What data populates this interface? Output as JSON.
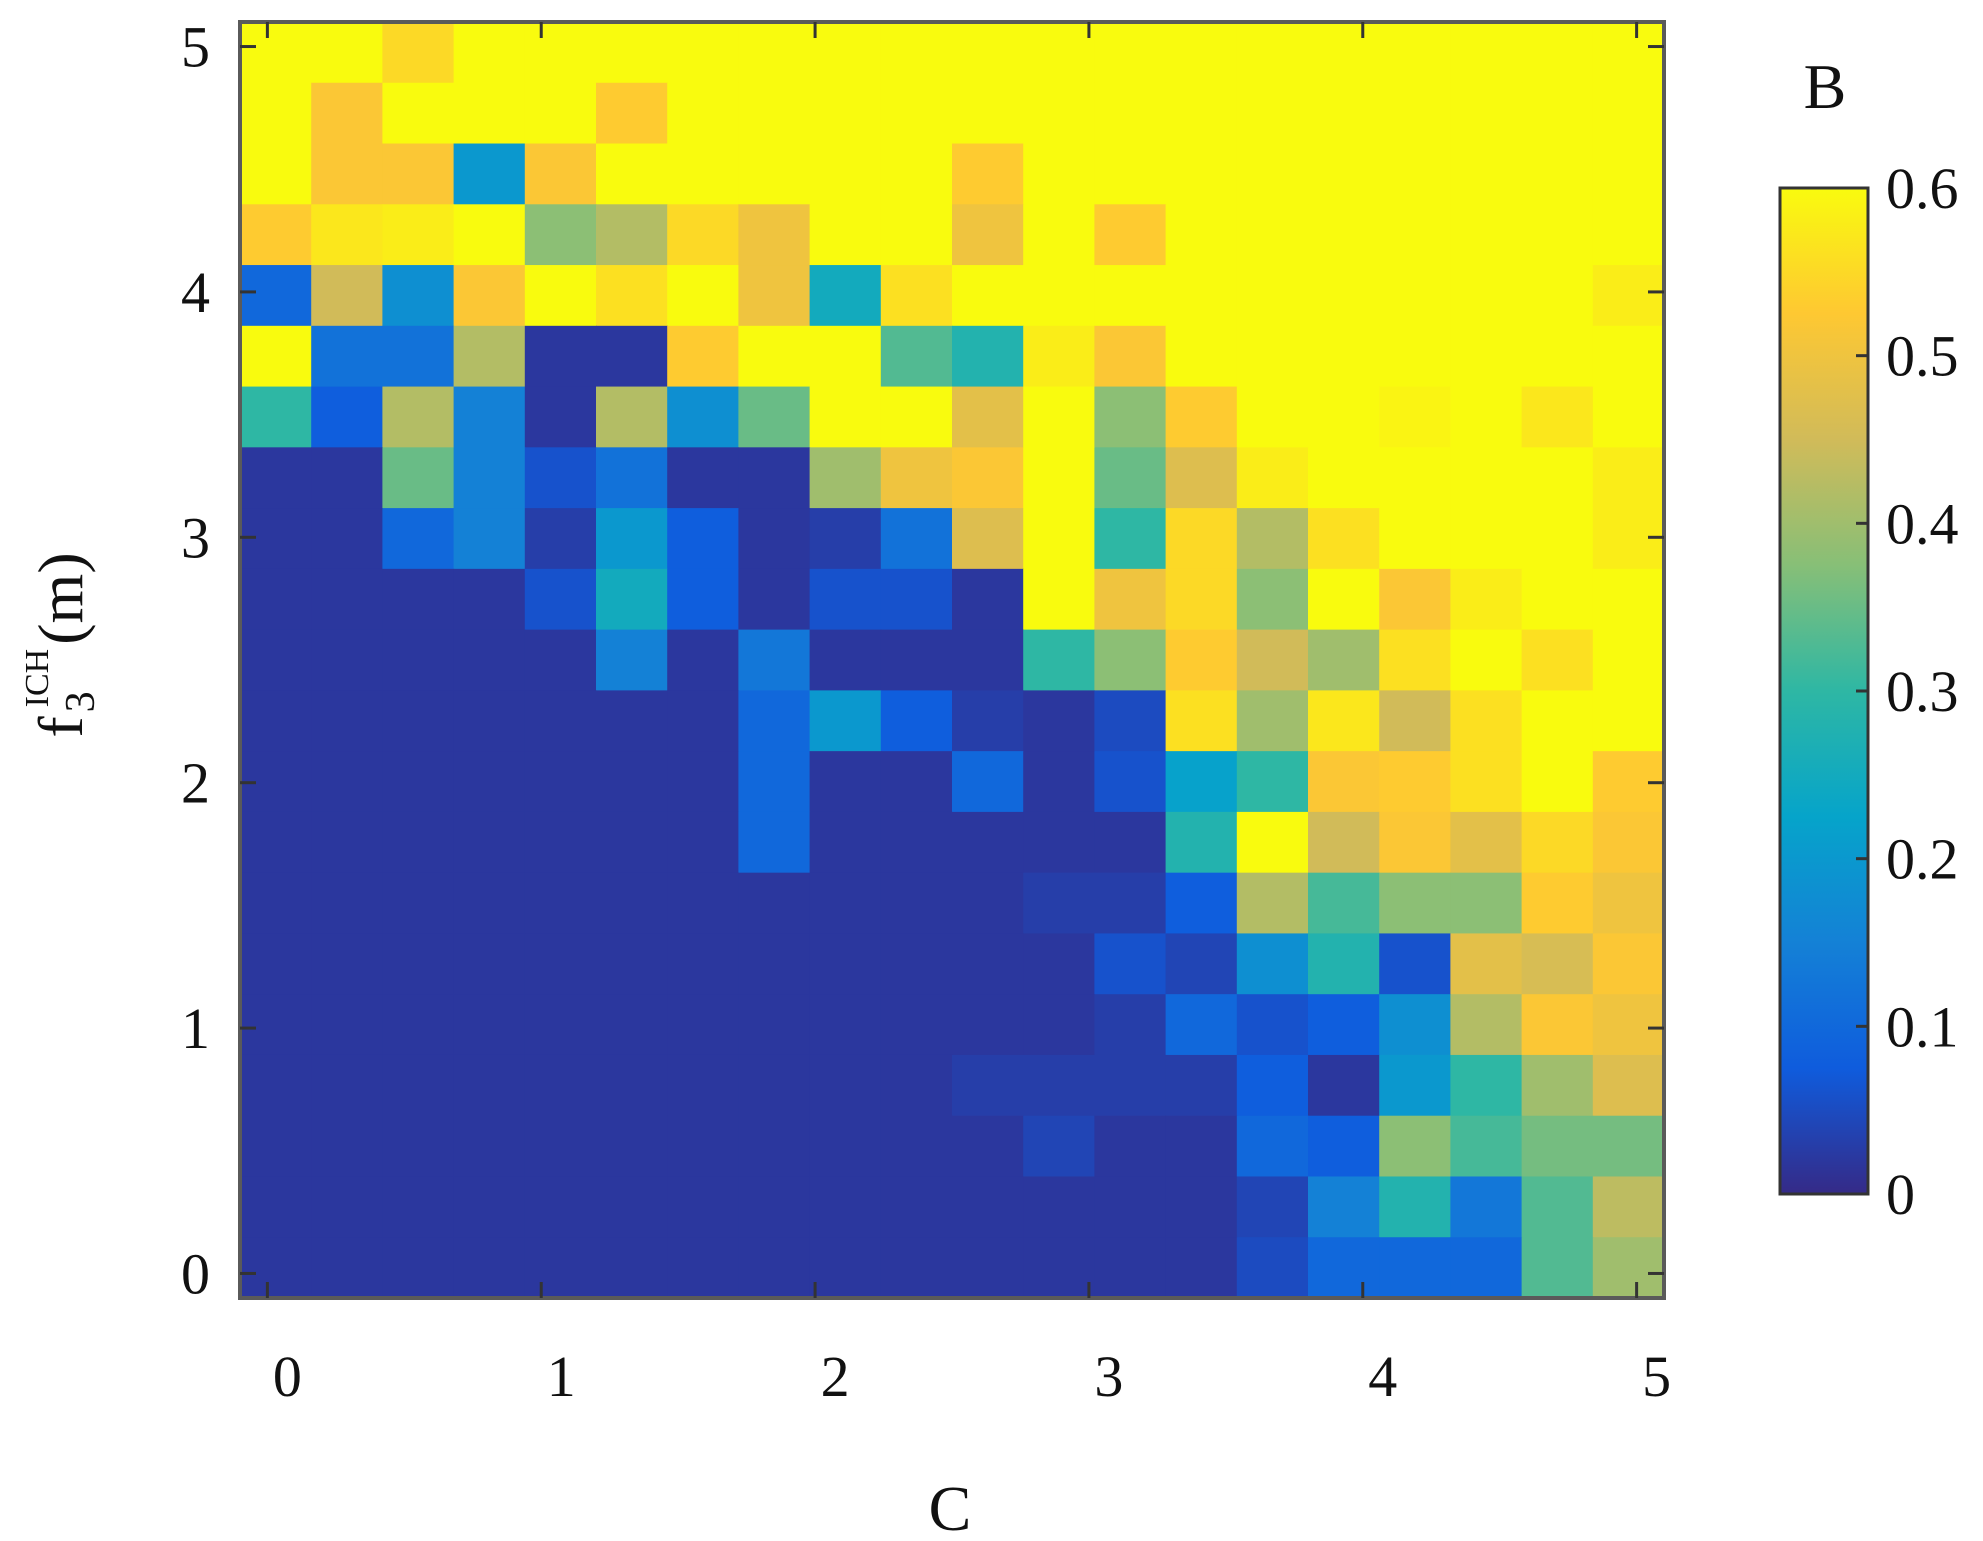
{
  "chart_data": {
    "type": "heatmap",
    "title": "",
    "xlabel": "C",
    "ylabel": {
      "base": "f",
      "sub": "3",
      "sup": "ICH",
      "unit": "(m)"
    },
    "colorbar_label": "B",
    "xlim": [
      -0.1,
      5.1
    ],
    "ylim": [
      -0.1,
      5.1
    ],
    "x_ticks": [
      0,
      1,
      2,
      3,
      4,
      5
    ],
    "y_ticks": [
      0,
      1,
      2,
      3,
      4,
      5
    ],
    "x_tick_labels": [
      "0",
      "1",
      "2",
      "3",
      "4",
      "5"
    ],
    "y_tick_labels": [
      "0",
      "1",
      "2",
      "3",
      "4",
      "5"
    ],
    "color_range": [
      0,
      0.6
    ],
    "colorbar_ticks": [
      0,
      0.1,
      0.2,
      0.3,
      0.4,
      0.5,
      0.6
    ],
    "colorbar_tick_labels": [
      "0",
      "0.1",
      "0.2",
      "0.3",
      "0.4",
      "0.5",
      "0.6"
    ],
    "colormap": "parula",
    "colormap_stops": [
      "#352A87",
      "#0F5CDD",
      "#1481D6",
      "#06A4CA",
      "#2EB7A4",
      "#87BF77",
      "#D1BB59",
      "#FEC832",
      "#F9FB0E"
    ],
    "grid": false,
    "values_note_rows": "rows listed from top (f=5) to bottom (f=0); 20 columns from C=0 to C=5",
    "values": [
      [
        0.6,
        0.6,
        0.55,
        0.6,
        0.6,
        0.6,
        0.6,
        0.6,
        0.6,
        0.6,
        0.6,
        0.6,
        0.6,
        0.6,
        0.6,
        0.6,
        0.6,
        0.6,
        0.6,
        0.6
      ],
      [
        0.6,
        0.52,
        0.6,
        0.6,
        0.6,
        0.53,
        0.6,
        0.6,
        0.6,
        0.6,
        0.6,
        0.6,
        0.6,
        0.6,
        0.6,
        0.6,
        0.6,
        0.6,
        0.6,
        0.6
      ],
      [
        0.6,
        0.52,
        0.52,
        0.2,
        0.52,
        0.6,
        0.6,
        0.6,
        0.6,
        0.6,
        0.53,
        0.6,
        0.6,
        0.6,
        0.6,
        0.6,
        0.6,
        0.6,
        0.6,
        0.6
      ],
      [
        0.53,
        0.57,
        0.58,
        0.6,
        0.38,
        0.42,
        0.55,
        0.5,
        0.6,
        0.6,
        0.5,
        0.6,
        0.53,
        0.6,
        0.6,
        0.6,
        0.6,
        0.6,
        0.6,
        0.6
      ],
      [
        0.1,
        0.45,
        0.18,
        0.52,
        0.6,
        0.56,
        0.6,
        0.5,
        0.25,
        0.56,
        0.6,
        0.6,
        0.6,
        0.6,
        0.6,
        0.6,
        0.6,
        0.6,
        0.6,
        0.58
      ],
      [
        0.6,
        0.12,
        0.12,
        0.42,
        0.02,
        0.02,
        0.53,
        0.6,
        0.6,
        0.33,
        0.28,
        0.58,
        0.52,
        0.6,
        0.6,
        0.6,
        0.6,
        0.6,
        0.6,
        0.6
      ],
      [
        0.3,
        0.08,
        0.42,
        0.15,
        0.02,
        0.42,
        0.18,
        0.35,
        0.6,
        0.6,
        0.48,
        0.6,
        0.38,
        0.53,
        0.6,
        0.6,
        0.59,
        0.6,
        0.57,
        0.6
      ],
      [
        0.02,
        0.02,
        0.35,
        0.15,
        0.06,
        0.12,
        0.02,
        0.02,
        0.4,
        0.5,
        0.52,
        0.6,
        0.35,
        0.47,
        0.58,
        0.6,
        0.6,
        0.6,
        0.6,
        0.58
      ],
      [
        0.02,
        0.02,
        0.1,
        0.15,
        0.03,
        0.2,
        0.08,
        0.02,
        0.03,
        0.12,
        0.47,
        0.6,
        0.3,
        0.55,
        0.42,
        0.56,
        0.6,
        0.6,
        0.6,
        0.58
      ],
      [
        0.02,
        0.02,
        0.02,
        0.02,
        0.06,
        0.25,
        0.08,
        0.02,
        0.06,
        0.06,
        0.02,
        0.6,
        0.5,
        0.55,
        0.38,
        0.6,
        0.52,
        0.58,
        0.6,
        0.6
      ],
      [
        0.02,
        0.02,
        0.02,
        0.02,
        0.02,
        0.15,
        0.02,
        0.13,
        0.02,
        0.02,
        0.02,
        0.3,
        0.38,
        0.53,
        0.45,
        0.4,
        0.56,
        0.6,
        0.56,
        0.6
      ],
      [
        0.02,
        0.02,
        0.02,
        0.02,
        0.02,
        0.02,
        0.02,
        0.1,
        0.2,
        0.08,
        0.03,
        0.02,
        0.05,
        0.56,
        0.4,
        0.57,
        0.45,
        0.56,
        0.6,
        0.6
      ],
      [
        0.02,
        0.02,
        0.02,
        0.02,
        0.02,
        0.02,
        0.02,
        0.1,
        0.02,
        0.02,
        0.1,
        0.02,
        0.06,
        0.22,
        0.3,
        0.52,
        0.53,
        0.56,
        0.6,
        0.53
      ],
      [
        0.02,
        0.02,
        0.02,
        0.02,
        0.02,
        0.02,
        0.02,
        0.1,
        0.02,
        0.02,
        0.02,
        0.02,
        0.02,
        0.28,
        0.6,
        0.45,
        0.52,
        0.48,
        0.55,
        0.52
      ],
      [
        0.02,
        0.02,
        0.02,
        0.02,
        0.02,
        0.02,
        0.02,
        0.02,
        0.02,
        0.02,
        0.02,
        0.03,
        0.03,
        0.08,
        0.42,
        0.32,
        0.38,
        0.38,
        0.53,
        0.5
      ],
      [
        0.02,
        0.02,
        0.02,
        0.02,
        0.02,
        0.02,
        0.02,
        0.02,
        0.02,
        0.02,
        0.02,
        0.02,
        0.06,
        0.04,
        0.18,
        0.28,
        0.06,
        0.48,
        0.46,
        0.52
      ],
      [
        0.02,
        0.02,
        0.02,
        0.02,
        0.02,
        0.02,
        0.02,
        0.02,
        0.02,
        0.02,
        0.02,
        0.02,
        0.03,
        0.1,
        0.06,
        0.08,
        0.18,
        0.42,
        0.52,
        0.5
      ],
      [
        0.02,
        0.02,
        0.02,
        0.02,
        0.02,
        0.02,
        0.02,
        0.02,
        0.02,
        0.02,
        0.03,
        0.03,
        0.03,
        0.03,
        0.08,
        0.02,
        0.2,
        0.3,
        0.4,
        0.47
      ],
      [
        0.02,
        0.02,
        0.02,
        0.02,
        0.02,
        0.02,
        0.02,
        0.02,
        0.02,
        0.02,
        0.02,
        0.04,
        0.02,
        0.02,
        0.1,
        0.08,
        0.38,
        0.32,
        0.36,
        0.36
      ],
      [
        0.02,
        0.02,
        0.02,
        0.02,
        0.02,
        0.02,
        0.02,
        0.02,
        0.02,
        0.02,
        0.02,
        0.02,
        0.02,
        0.02,
        0.04,
        0.15,
        0.28,
        0.13,
        0.33,
        0.43
      ],
      [
        0.02,
        0.02,
        0.02,
        0.02,
        0.02,
        0.02,
        0.02,
        0.02,
        0.02,
        0.02,
        0.02,
        0.02,
        0.02,
        0.02,
        0.05,
        0.1,
        0.1,
        0.1,
        0.33,
        0.4
      ]
    ]
  }
}
